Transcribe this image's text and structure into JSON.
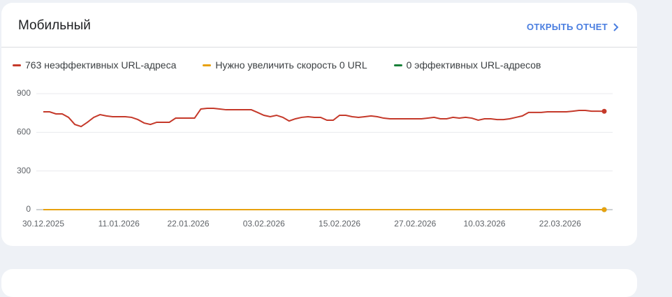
{
  "header": {
    "title": "Мобильный",
    "link": "ОТКРЫТЬ ОТЧЕТ"
  },
  "chart_data": {
    "type": "line",
    "categories": [
      "30.12.2025",
      null,
      null,
      null,
      null,
      null,
      null,
      null,
      null,
      null,
      null,
      null,
      "11.01.2026",
      null,
      null,
      null,
      null,
      null,
      null,
      null,
      null,
      null,
      null,
      "22.01.2026",
      null,
      null,
      null,
      null,
      null,
      null,
      null,
      null,
      null,
      null,
      null,
      "03.02.2026",
      null,
      null,
      null,
      null,
      null,
      null,
      null,
      null,
      null,
      null,
      null,
      "15.02.2026",
      null,
      null,
      null,
      null,
      null,
      null,
      null,
      null,
      null,
      null,
      null,
      "27.02.2026",
      null,
      null,
      null,
      null,
      null,
      null,
      null,
      null,
      null,
      null,
      "10.03.2026",
      null,
      null,
      null,
      null,
      null,
      null,
      null,
      null,
      null,
      null,
      null,
      "22.03.2026",
      null,
      null,
      null,
      null,
      null,
      null,
      null
    ],
    "series": [
      {
        "name": "763 неэффективных URL-адреса",
        "color": "#c5392a",
        "values": [
          759,
          759,
          743,
          743,
          716,
          661,
          645,
          678,
          716,
          737,
          727,
          721,
          721,
          721,
          716,
          699,
          672,
          661,
          678,
          678,
          678,
          710,
          710,
          710,
          710,
          781,
          786,
          786,
          781,
          775,
          775,
          775,
          775,
          775,
          754,
          732,
          721,
          732,
          716,
          688,
          705,
          716,
          721,
          716,
          716,
          694,
          694,
          732,
          732,
          721,
          716,
          721,
          727,
          721,
          710,
          705,
          705,
          705,
          705,
          705,
          705,
          710,
          716,
          705,
          705,
          716,
          710,
          716,
          710,
          694,
          705,
          705,
          699,
          699,
          705,
          716,
          727,
          754,
          754,
          754,
          759,
          759,
          759,
          759,
          764,
          770,
          770,
          764,
          764,
          763
        ]
      },
      {
        "name": "Нужно увеличить скорость 0 URL",
        "color": "#e8a10e",
        "values": [
          0,
          0,
          0,
          0,
          0,
          0,
          0,
          0,
          0,
          0,
          0,
          0,
          0,
          0,
          0,
          0,
          0,
          0,
          0,
          0,
          0,
          0,
          0,
          0,
          0,
          0,
          0,
          0,
          0,
          0,
          0,
          0,
          0,
          0,
          0,
          0,
          0,
          0,
          0,
          0,
          0,
          0,
          0,
          0,
          0,
          0,
          0,
          0,
          0,
          0,
          0,
          0,
          0,
          0,
          0,
          0,
          0,
          0,
          0,
          0,
          0,
          0,
          0,
          0,
          0,
          0,
          0,
          0,
          0,
          0,
          0,
          0,
          0,
          0,
          0,
          0,
          0,
          0,
          0,
          0,
          0,
          0,
          0,
          0,
          0,
          0,
          0,
          0,
          0,
          0
        ]
      },
      {
        "name": "0 эффективных URL-адресов",
        "color": "#188038",
        "values": [
          0,
          0,
          0,
          0,
          0,
          0,
          0,
          0,
          0,
          0,
          0,
          0,
          0,
          0,
          0,
          0,
          0,
          0,
          0,
          0,
          0,
          0,
          0,
          0,
          0,
          0,
          0,
          0,
          0,
          0,
          0,
          0,
          0,
          0,
          0,
          0,
          0,
          0,
          0,
          0,
          0,
          0,
          0,
          0,
          0,
          0,
          0,
          0,
          0,
          0,
          0,
          0,
          0,
          0,
          0,
          0,
          0,
          0,
          0,
          0,
          0,
          0,
          0,
          0,
          0,
          0,
          0,
          0,
          0,
          0,
          0,
          0,
          0,
          0,
          0,
          0,
          0,
          0,
          0,
          0,
          0,
          0,
          0,
          0,
          0,
          0,
          0,
          0,
          0,
          0
        ]
      }
    ],
    "ylim": [
      0,
      900
    ],
    "yticks": [
      0,
      300,
      600,
      900
    ],
    "grid": true
  }
}
